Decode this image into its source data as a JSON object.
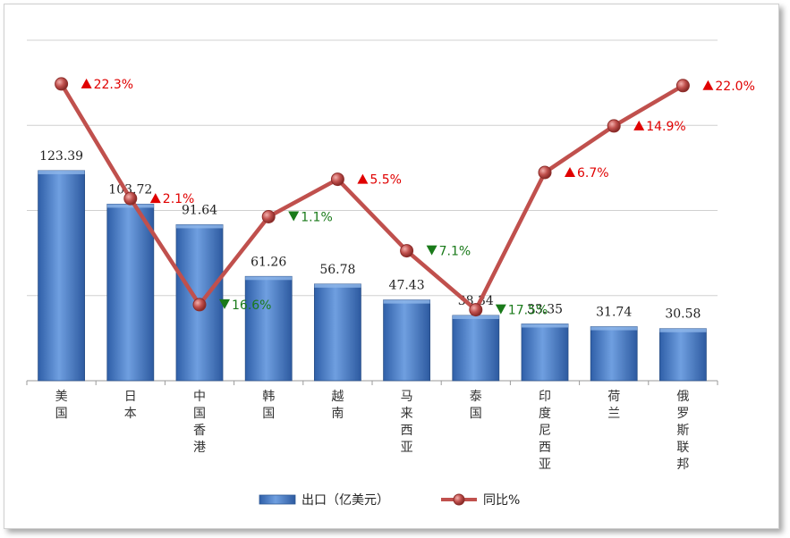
{
  "chart_data": {
    "type": "bar",
    "categories": [
      "美国",
      "日本",
      "中国香港",
      "韩国",
      "越南",
      "马来西亚",
      "泰国",
      "印度尼西亚",
      "荷兰",
      "俄罗斯联邦"
    ],
    "series": [
      {
        "name": "出口（亿美元）",
        "type": "bar",
        "values": [
          123.39,
          103.72,
          91.64,
          61.26,
          56.78,
          47.43,
          38.34,
          33.35,
          31.74,
          30.58
        ],
        "labels": [
          "123.39",
          "103.72",
          "91.64",
          "61.26",
          "56.78",
          "47.43",
          "38.34",
          "33.35",
          "31.74",
          "30.58"
        ],
        "color": "#4a7fc8"
      },
      {
        "name": "同比%",
        "type": "line",
        "values": [
          22.3,
          2.1,
          -16.6,
          -1.1,
          5.5,
          -7.1,
          -17.5,
          6.7,
          14.9,
          22.0
        ],
        "labels": [
          "22.3%",
          "2.1%",
          "16.6%",
          "1.1%",
          "5.5%",
          "7.1%",
          "17.5%",
          "6.7%",
          "14.9%",
          "22.0%"
        ],
        "color": "#c0504d"
      }
    ],
    "ylim": [
      0,
      200
    ],
    "y2lim": [
      -30,
      30
    ],
    "grid": true,
    "legend": "bottom",
    "up_color": "#e00000",
    "down_color": "#1a7a1a"
  },
  "legend": {
    "bar_label": "出口（亿美元）",
    "line_label": "同比%"
  }
}
